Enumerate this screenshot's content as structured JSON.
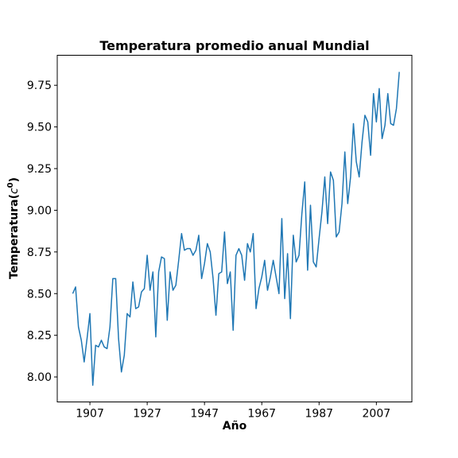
{
  "chart_data": {
    "type": "line",
    "title": "Temperatura promedio anual Mundial",
    "xlabel": "Año",
    "ylabel": "Temperatura($c^0$)",
    "ylabel_display": "Temperatura(",
    "ylabel_base": "c",
    "ylabel_sup": "0",
    "ylabel_close": ")",
    "grid": false,
    "legend": "none",
    "color": "#1f77b4",
    "xlim": [
      1895.6,
      2019.4
    ],
    "ylim": [
      7.85,
      9.93
    ],
    "x_ticks": [
      1907,
      1927,
      1947,
      1967,
      1987,
      2007
    ],
    "y_ticks": [
      "8.00",
      "8.25",
      "8.50",
      "8.75",
      "9.00",
      "9.25",
      "9.50",
      "9.75"
    ],
    "x": [
      1901,
      1902,
      1903,
      1904,
      1905,
      1906,
      1907,
      1908,
      1909,
      1910,
      1911,
      1912,
      1913,
      1914,
      1915,
      1916,
      1917,
      1918,
      1919,
      1920,
      1921,
      1922,
      1923,
      1924,
      1925,
      1926,
      1927,
      1928,
      1929,
      1930,
      1931,
      1932,
      1933,
      1934,
      1935,
      1936,
      1937,
      1938,
      1939,
      1940,
      1941,
      1942,
      1943,
      1944,
      1945,
      1946,
      1947,
      1948,
      1949,
      1950,
      1951,
      1952,
      1953,
      1954,
      1955,
      1956,
      1957,
      1958,
      1959,
      1960,
      1961,
      1962,
      1963,
      1964,
      1965,
      1966,
      1967,
      1968,
      1969,
      1970,
      1971,
      1972,
      1973,
      1974,
      1975,
      1976,
      1977,
      1978,
      1979,
      1980,
      1981,
      1982,
      1983,
      1984,
      1985,
      1986,
      1987,
      1988,
      1989,
      1990,
      1991,
      1992,
      1993,
      1994,
      1995,
      1996,
      1997,
      1998,
      1999,
      2000,
      2001,
      2002,
      2003,
      2004,
      2005,
      2006,
      2007,
      2008,
      2009,
      2010,
      2011,
      2012,
      2013,
      2014,
      2015
    ],
    "series": [
      {
        "values": [
          8.5,
          8.54,
          8.3,
          8.22,
          8.09,
          8.23,
          8.38,
          7.95,
          8.19,
          8.18,
          8.22,
          8.18,
          8.17,
          8.3,
          8.59,
          8.59,
          8.23,
          8.03,
          8.13,
          8.38,
          8.36,
          8.57,
          8.41,
          8.42,
          8.51,
          8.53,
          8.73,
          8.52,
          8.63,
          8.24,
          8.63,
          8.72,
          8.71,
          8.34,
          8.63,
          8.52,
          8.55,
          8.7,
          8.86,
          8.76,
          8.77,
          8.77,
          8.73,
          8.76,
          8.85,
          8.59,
          8.68,
          8.8,
          8.75,
          8.59,
          8.37,
          8.62,
          8.63,
          8.87,
          8.56,
          8.63,
          8.28,
          8.73,
          8.77,
          8.73,
          8.58,
          8.8,
          8.75,
          8.86,
          8.41,
          8.53,
          8.6,
          8.7,
          8.52,
          8.6,
          8.7,
          8.6,
          8.5,
          8.95,
          8.47,
          8.74,
          8.35,
          8.85,
          8.69,
          8.73,
          8.98,
          9.17,
          8.64,
          9.03,
          8.69,
          8.66,
          8.83,
          8.99,
          9.2,
          8.92,
          9.23,
          9.18,
          8.84,
          8.87,
          9.04,
          9.35,
          9.04,
          9.2,
          9.52,
          9.29,
          9.2,
          9.41,
          9.57,
          9.53,
          9.33,
          9.7,
          9.53,
          9.73,
          9.43,
          9.51,
          9.7,
          9.52,
          9.51,
          9.61,
          9.83
        ]
      }
    ]
  }
}
